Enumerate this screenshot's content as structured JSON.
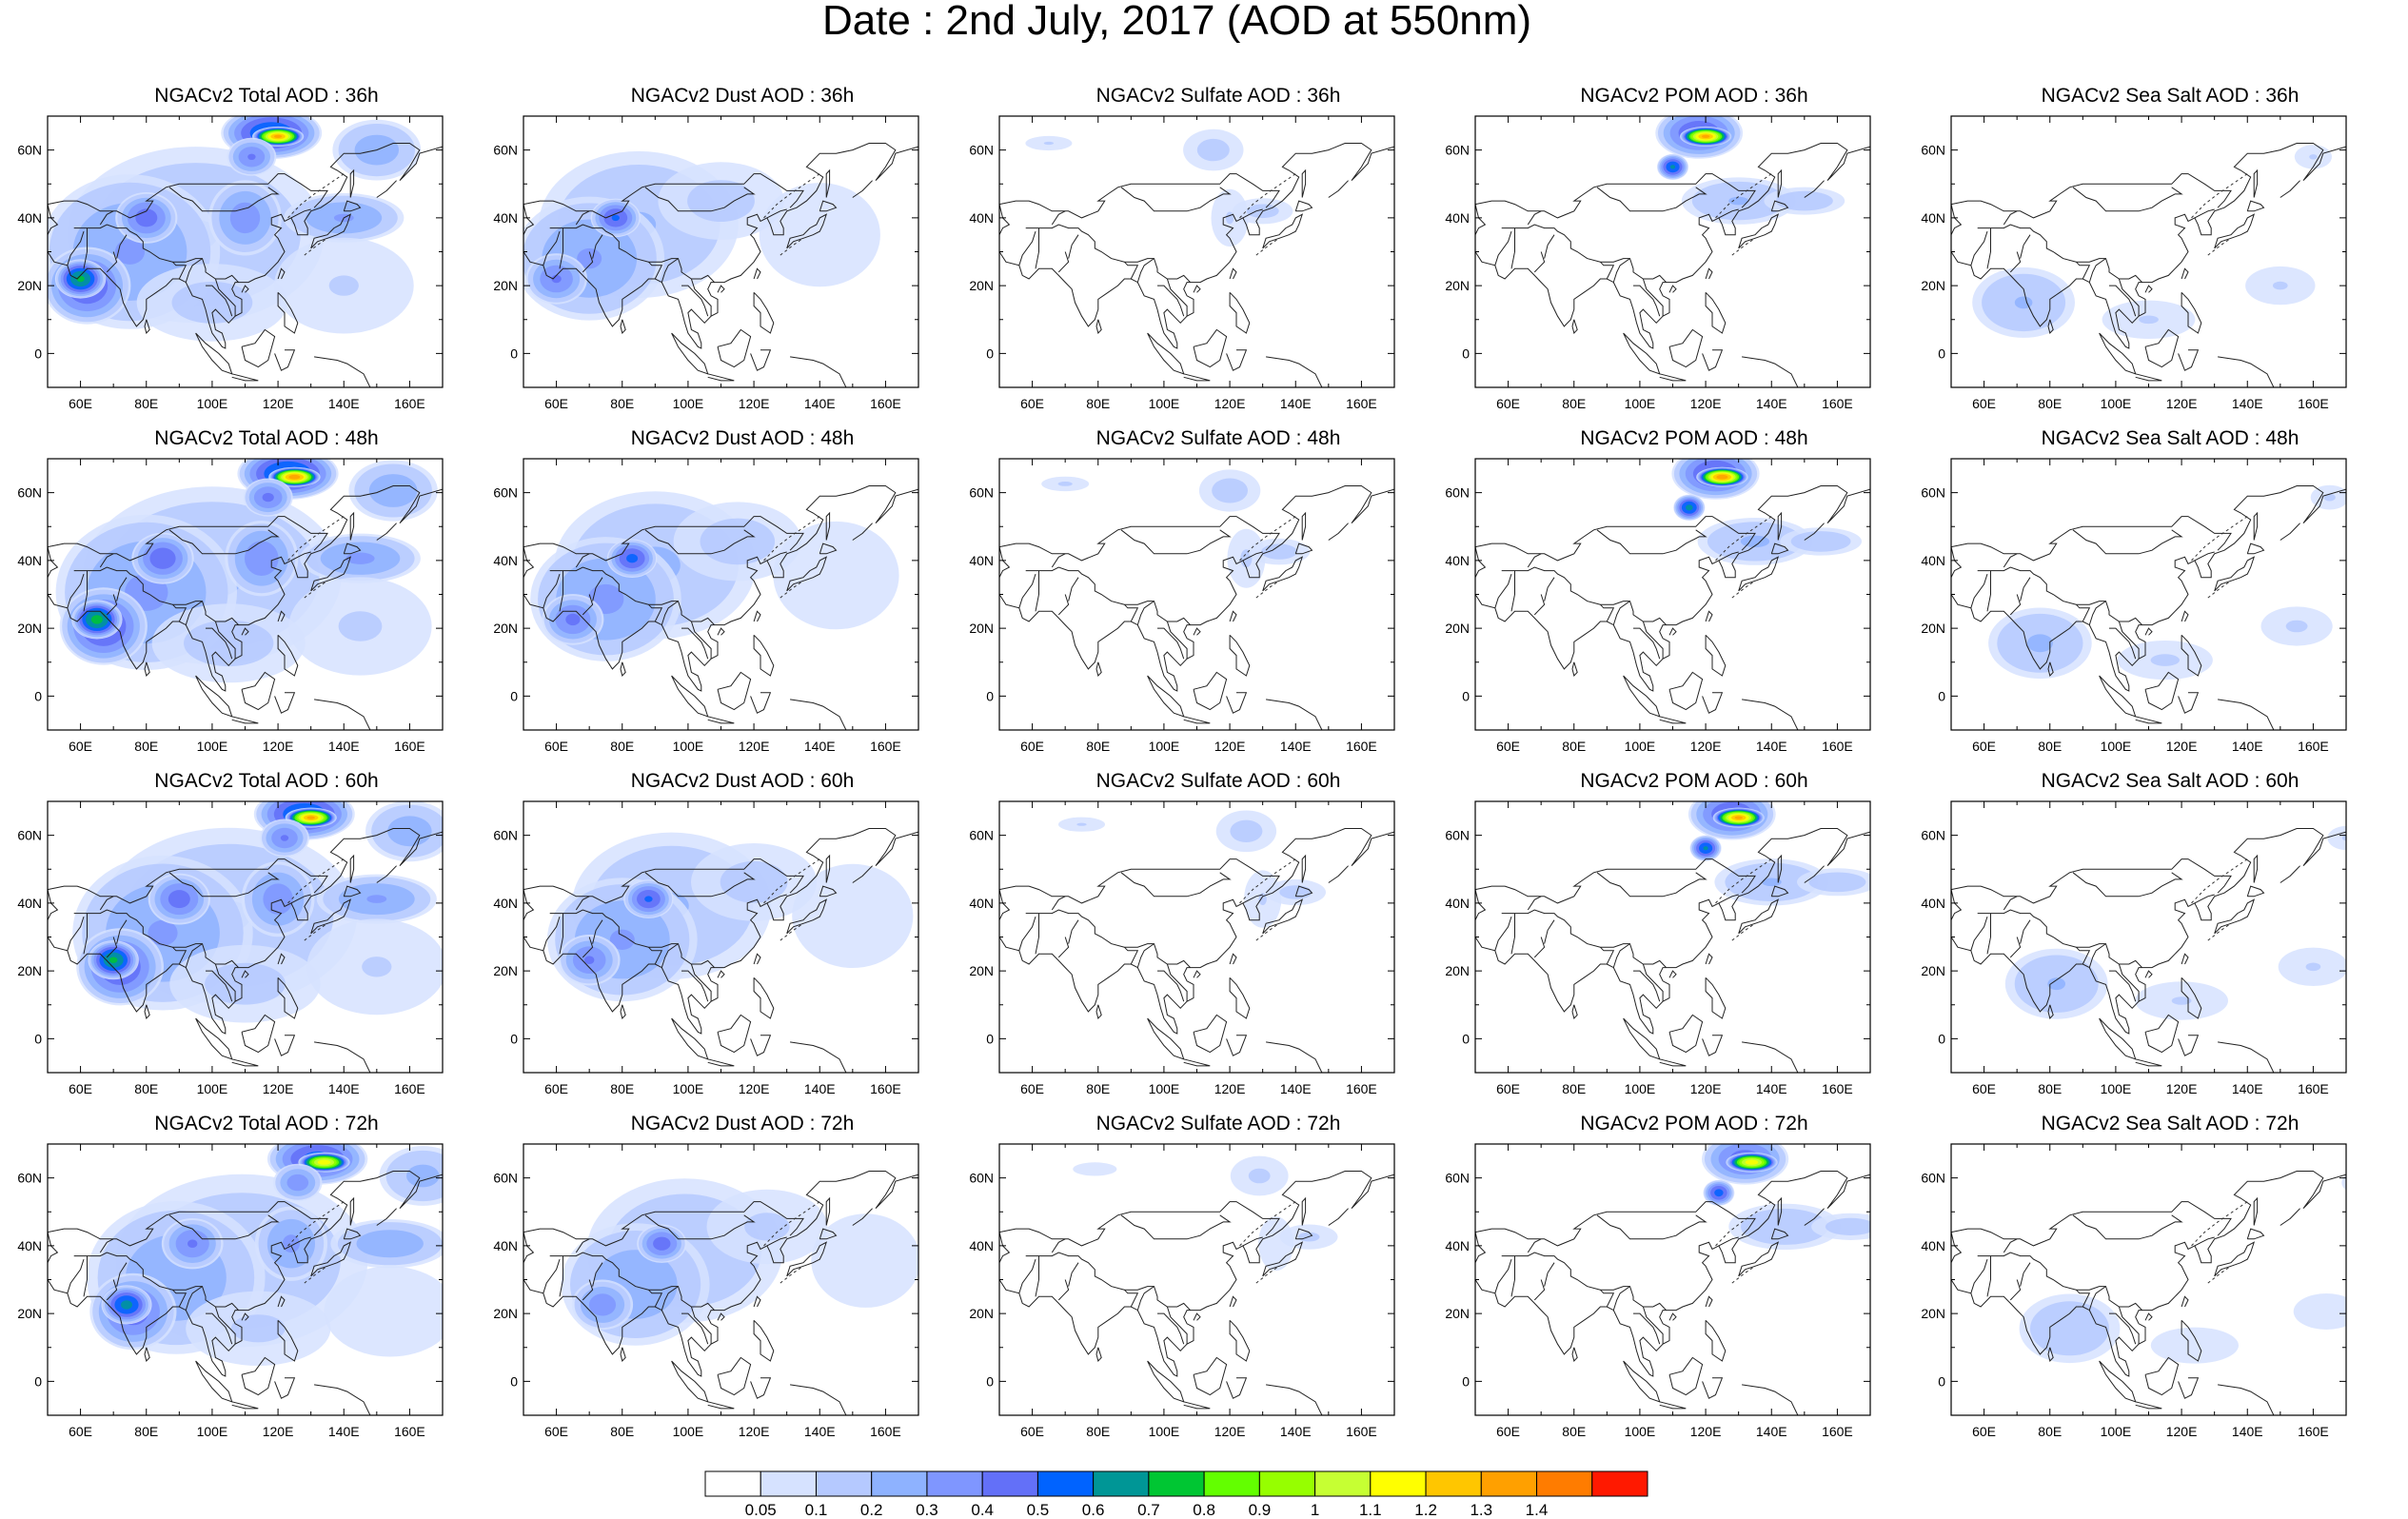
{
  "figure": {
    "title": "Date : 2nd July, 2017 (AOD at 550nm)"
  },
  "map_axes": {
    "lon_ticks": [
      "60E",
      "80E",
      "100E",
      "120E",
      "140E",
      "160E"
    ],
    "lat_ticks": [
      "60N",
      "40N",
      "20N",
      "0"
    ],
    "lon_range_deg": [
      50,
      170
    ],
    "lat_range_deg": [
      -10,
      70
    ]
  },
  "panels": [
    {
      "title": "NGACv2 Total AOD : 36h",
      "species": "total",
      "hour": "36h"
    },
    {
      "title": "NGACv2 Dust AOD : 36h",
      "species": "dust",
      "hour": "36h"
    },
    {
      "title": "NGACv2 Sulfate AOD : 36h",
      "species": "sulfate",
      "hour": "36h"
    },
    {
      "title": "NGACv2 POM AOD : 36h",
      "species": "pom",
      "hour": "36h"
    },
    {
      "title": "NGACv2 Sea Salt AOD : 36h",
      "species": "seasalt",
      "hour": "36h"
    },
    {
      "title": "NGACv2 Total AOD : 48h",
      "species": "total",
      "hour": "48h"
    },
    {
      "title": "NGACv2 Dust AOD : 48h",
      "species": "dust",
      "hour": "48h"
    },
    {
      "title": "NGACv2 Sulfate AOD : 48h",
      "species": "sulfate",
      "hour": "48h"
    },
    {
      "title": "NGACv2 POM AOD : 48h",
      "species": "pom",
      "hour": "48h"
    },
    {
      "title": "NGACv2 Sea Salt AOD : 48h",
      "species": "seasalt",
      "hour": "48h"
    },
    {
      "title": "NGACv2 Total AOD : 60h",
      "species": "total",
      "hour": "60h"
    },
    {
      "title": "NGACv2 Dust AOD : 60h",
      "species": "dust",
      "hour": "60h"
    },
    {
      "title": "NGACv2 Sulfate AOD : 60h",
      "species": "sulfate",
      "hour": "60h"
    },
    {
      "title": "NGACv2 POM AOD : 60h",
      "species": "pom",
      "hour": "60h"
    },
    {
      "title": "NGACv2 Sea Salt AOD : 60h",
      "species": "seasalt",
      "hour": "60h"
    },
    {
      "title": "NGACv2 Total AOD : 72h",
      "species": "total",
      "hour": "72h"
    },
    {
      "title": "NGACv2 Dust AOD : 72h",
      "species": "dust",
      "hour": "72h"
    },
    {
      "title": "NGACv2 Sulfate AOD : 72h",
      "species": "sulfate",
      "hour": "72h"
    },
    {
      "title": "NGACv2 POM AOD : 72h",
      "species": "pom",
      "hour": "72h"
    },
    {
      "title": "NGACv2 Sea Salt  AOD : 72h",
      "species": "seasalt",
      "hour": "72h"
    }
  ],
  "colorbar": {
    "labels": [
      "0.05",
      "0.1",
      "0.2",
      "0.3",
      "0.4",
      "0.5",
      "0.6",
      "0.7",
      "0.8",
      "0.9",
      "1",
      "1.1",
      "1.2",
      "1.3",
      "1.4"
    ],
    "colors": [
      "#ffffff",
      "#d6e2ff",
      "#b5c9ff",
      "#8eb2ff",
      "#7f96ff",
      "#6370f8",
      "#0063ff",
      "#009696",
      "#00c633",
      "#63ff00",
      "#96ff00",
      "#c6ff33",
      "#ffff00",
      "#ffc600",
      "#ffa000",
      "#ff7c00",
      "#ff1900"
    ]
  }
}
